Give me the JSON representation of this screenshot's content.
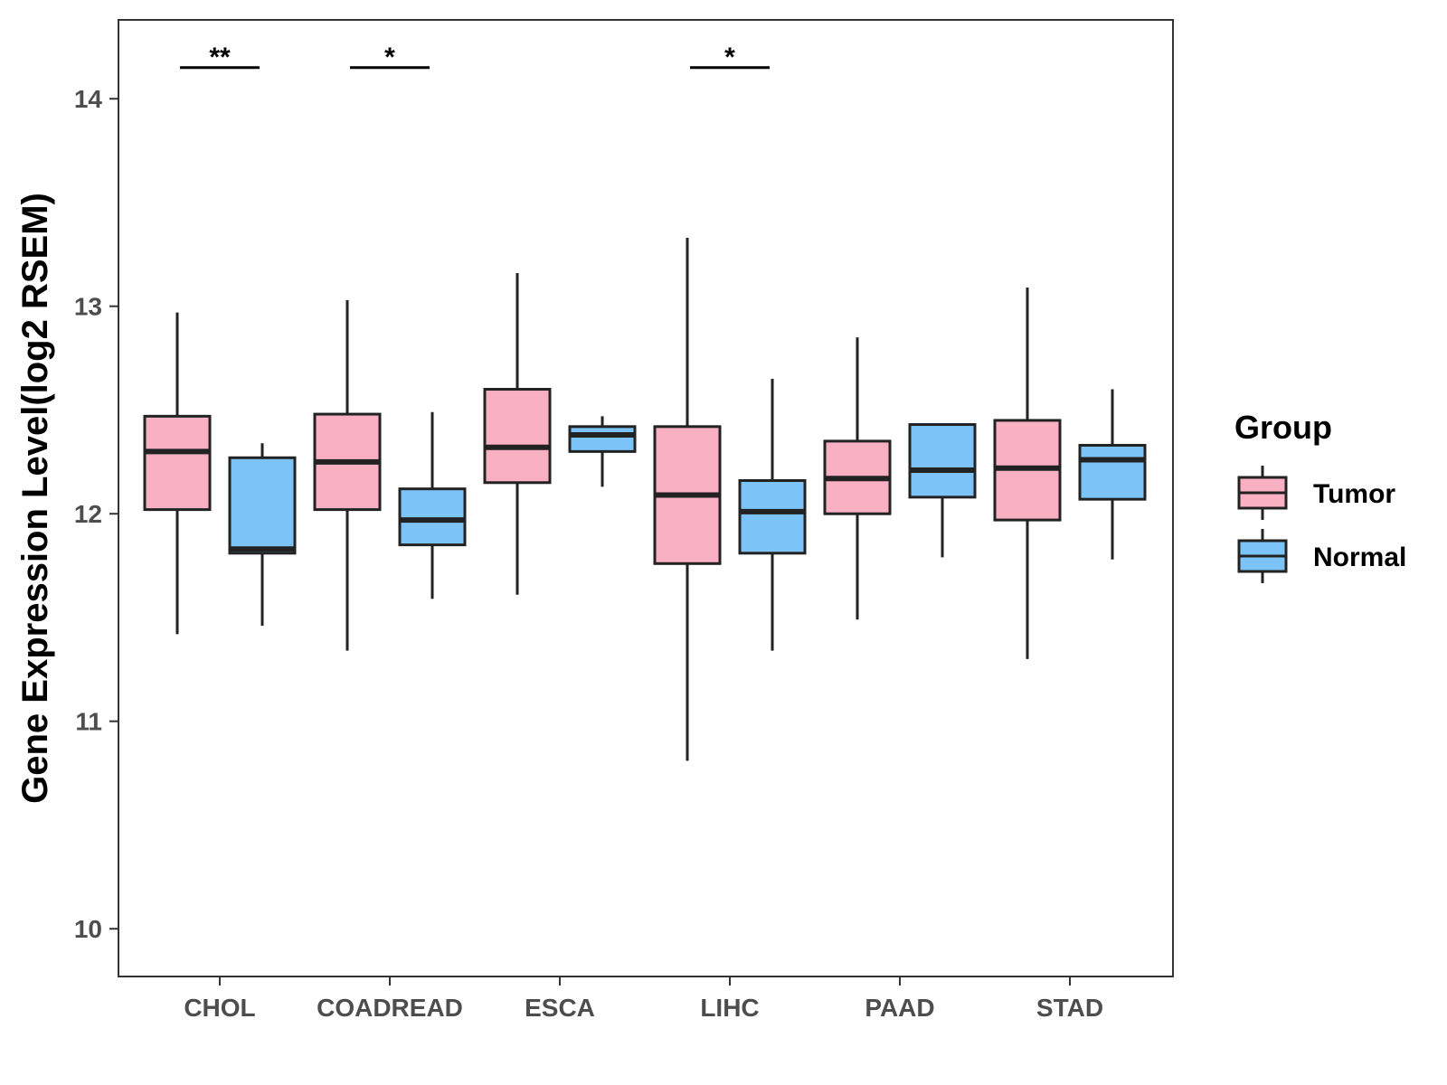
{
  "chart_data": {
    "type": "boxplot",
    "ylabel": "Gene Expression Level(log2 RSEM)",
    "xlabel": "",
    "ylim": [
      9.77,
      14.38
    ],
    "yticks": [
      10,
      11,
      12,
      13,
      14
    ],
    "categories": [
      "CHOL",
      "COADREAD",
      "ESCA",
      "LIHC",
      "PAAD",
      "STAD"
    ],
    "legend": {
      "title": "Group",
      "position": "right",
      "entries": [
        {
          "name": "Tumor",
          "color": "#f9b0c3"
        },
        {
          "name": "Normal",
          "color": "#7cc4f8"
        }
      ]
    },
    "series": [
      {
        "name": "Tumor",
        "color": "#f9b0c3",
        "boxes": [
          {
            "category": "CHOL",
            "min": 11.42,
            "q1": 12.02,
            "median": 12.3,
            "q3": 12.47,
            "max": 12.97
          },
          {
            "category": "COADREAD",
            "min": 11.34,
            "q1": 12.02,
            "median": 12.25,
            "q3": 12.48,
            "max": 13.03
          },
          {
            "category": "ESCA",
            "min": 11.61,
            "q1": 12.15,
            "median": 12.32,
            "q3": 12.6,
            "max": 13.16
          },
          {
            "category": "LIHC",
            "min": 10.81,
            "q1": 11.76,
            "median": 12.09,
            "q3": 12.42,
            "max": 13.33
          },
          {
            "category": "PAAD",
            "min": 11.49,
            "q1": 12.0,
            "median": 12.17,
            "q3": 12.35,
            "max": 12.85
          },
          {
            "category": "STAD",
            "min": 11.3,
            "q1": 11.97,
            "median": 12.22,
            "q3": 12.45,
            "max": 13.09
          }
        ]
      },
      {
        "name": "Normal",
        "color": "#7cc4f8",
        "boxes": [
          {
            "category": "CHOL",
            "min": 11.46,
            "q1": 11.81,
            "median": 11.83,
            "q3": 12.27,
            "max": 12.34
          },
          {
            "category": "COADREAD",
            "min": 11.59,
            "q1": 11.85,
            "median": 11.97,
            "q3": 12.12,
            "max": 12.49
          },
          {
            "category": "ESCA",
            "min": 12.13,
            "q1": 12.3,
            "median": 12.38,
            "q3": 12.42,
            "max": 12.47
          },
          {
            "category": "LIHC",
            "min": 11.34,
            "q1": 11.81,
            "median": 12.01,
            "q3": 12.16,
            "max": 12.65
          },
          {
            "category": "PAAD",
            "min": 11.79,
            "q1": 12.08,
            "median": 12.21,
            "q3": 12.43,
            "max": 12.43
          },
          {
            "category": "STAD",
            "min": 11.78,
            "q1": 12.07,
            "median": 12.26,
            "q3": 12.33,
            "max": 12.6
          }
        ]
      }
    ],
    "annotations": [
      {
        "category": "CHOL",
        "label": "**",
        "y": 14.15
      },
      {
        "category": "COADREAD",
        "label": "*",
        "y": 14.15
      },
      {
        "category": "LIHC",
        "label": "*",
        "y": 14.15
      }
    ]
  }
}
